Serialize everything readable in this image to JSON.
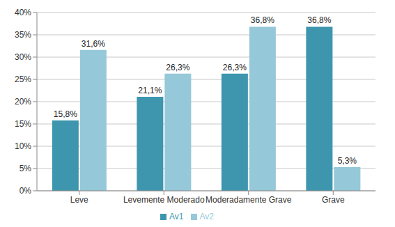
{
  "chart_data": {
    "type": "bar",
    "categories": [
      "Leve",
      "Levemente Moderado",
      "Moderadamente Grave",
      "Grave"
    ],
    "series": [
      {
        "name": "Av1",
        "color": "#3d96ae",
        "values": [
          15.8,
          21.1,
          26.3,
          36.8
        ],
        "value_labels": [
          "15,8%",
          "21,1%",
          "26,3%",
          "36,8%"
        ]
      },
      {
        "name": "Av2",
        "color": "#95c8d8",
        "values": [
          31.6,
          26.3,
          36.8,
          5.3
        ],
        "value_labels": [
          "31,6%",
          "26,3%",
          "36,8%",
          "5,3%"
        ]
      }
    ],
    "ylim": [
      0,
      40
    ],
    "yticks": [
      {
        "value": 0,
        "label": "0%"
      },
      {
        "value": 5,
        "label": "5%"
      },
      {
        "value": 10,
        "label": "10%"
      },
      {
        "value": 15,
        "label": "15%"
      },
      {
        "value": 20,
        "label": "20%"
      },
      {
        "value": 25,
        "label": "25%"
      },
      {
        "value": 30,
        "label": "30%"
      },
      {
        "value": 35,
        "label": "35%"
      },
      {
        "value": 40,
        "label": "40%"
      }
    ],
    "grid": true,
    "legend": "bottom",
    "data_labels": true
  }
}
